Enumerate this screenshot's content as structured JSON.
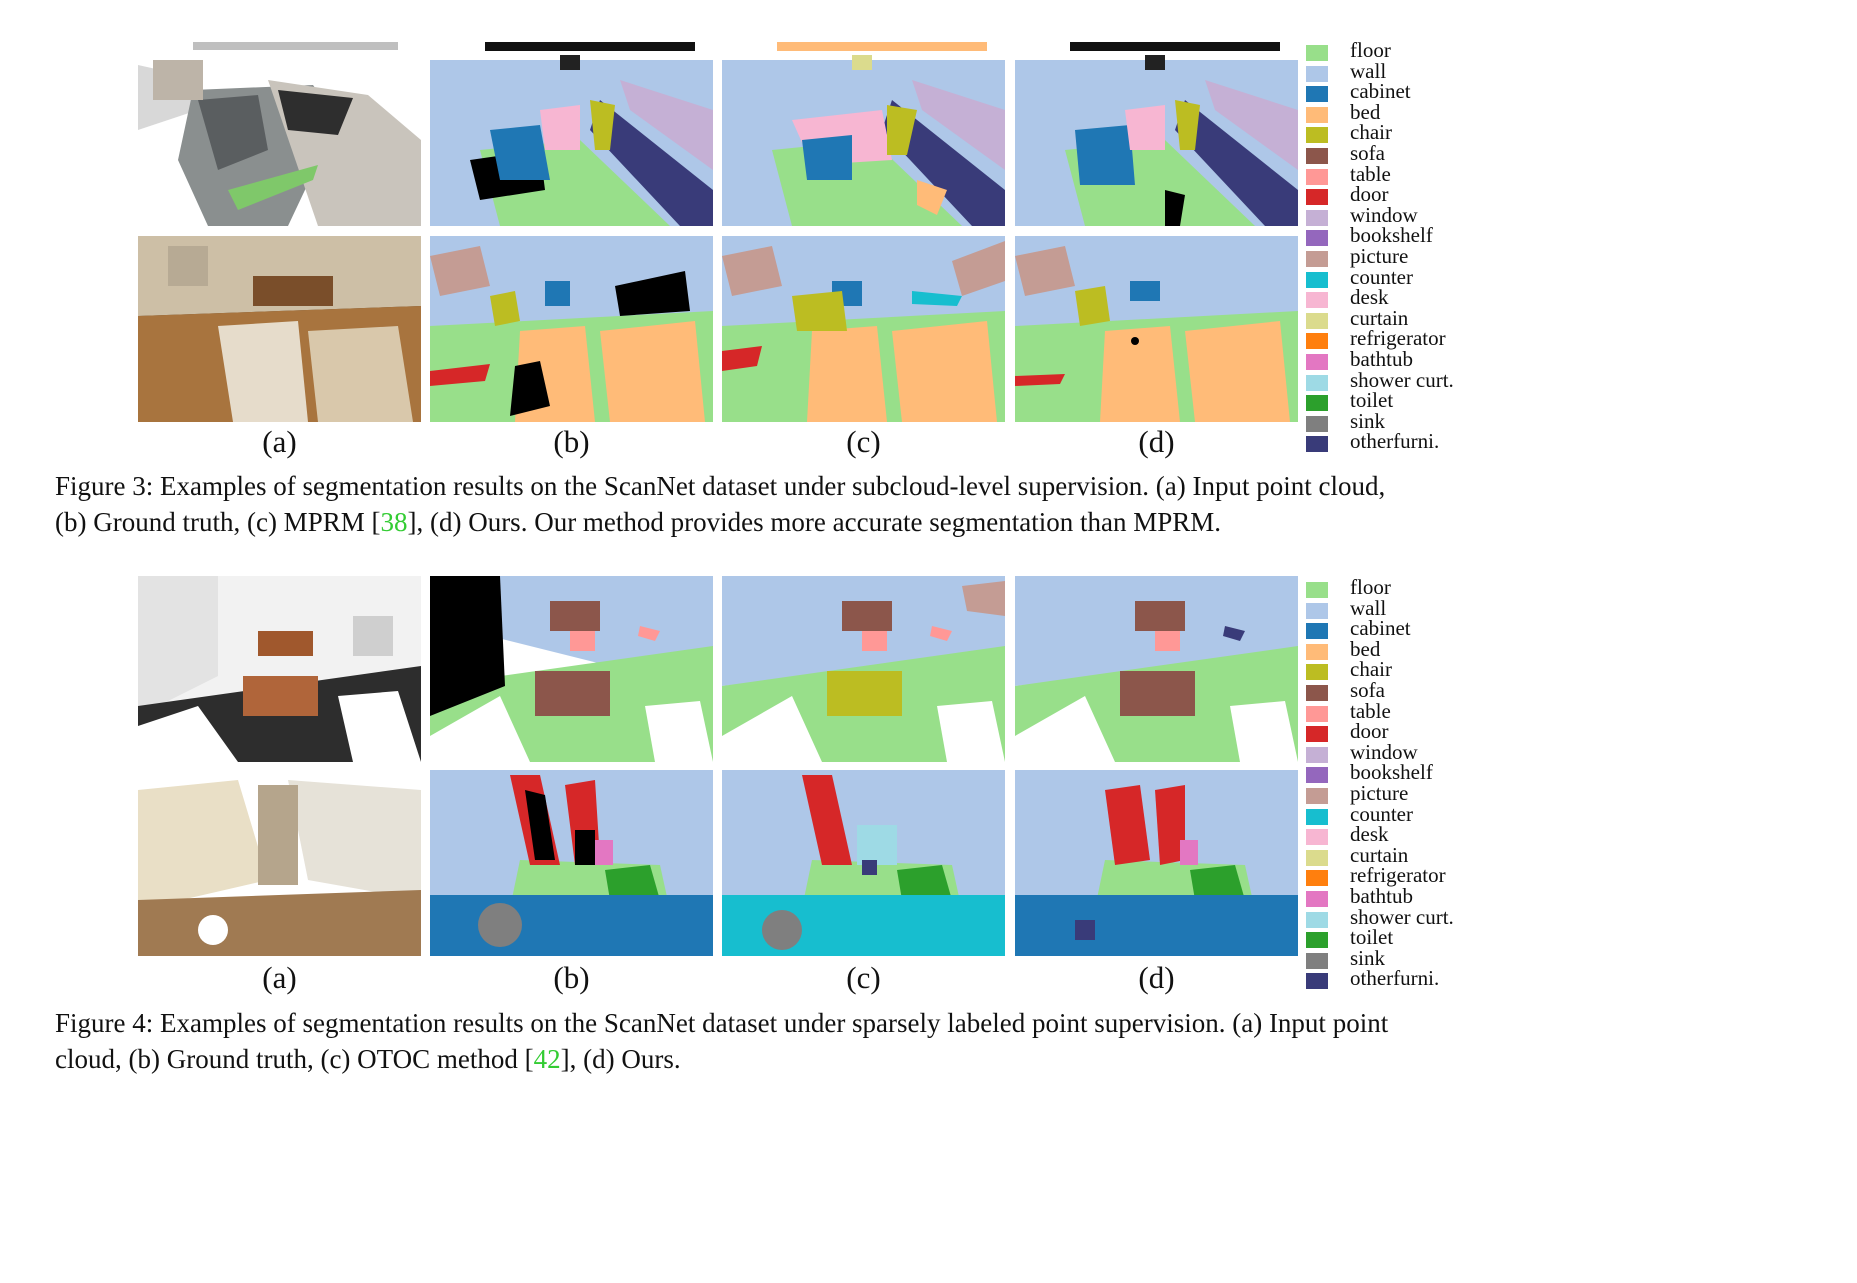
{
  "legend_classes": [
    {
      "label": "floor",
      "color": "#98df8a"
    },
    {
      "label": "wall",
      "color": "#aec7e8"
    },
    {
      "label": "cabinet",
      "color": "#1f77b4"
    },
    {
      "label": "bed",
      "color": "#ffbb78"
    },
    {
      "label": "chair",
      "color": "#bcbd22"
    },
    {
      "label": "sofa",
      "color": "#8c564b"
    },
    {
      "label": "table",
      "color": "#ff9896"
    },
    {
      "label": "door",
      "color": "#d62728"
    },
    {
      "label": "window",
      "color": "#c5b0d5"
    },
    {
      "label": "bookshelf",
      "color": "#9467bd"
    },
    {
      "label": "picture",
      "color": "#c49c94"
    },
    {
      "label": "counter",
      "color": "#17becf"
    },
    {
      "label": "desk",
      "color": "#f7b6d2"
    },
    {
      "label": "curtain",
      "color": "#dbdb8d"
    },
    {
      "label": "refrigerator",
      "color": "#ff7f0e"
    },
    {
      "label": "bathtub",
      "color": "#e377c2"
    },
    {
      "label": "shower curt.",
      "color": "#9edae5"
    },
    {
      "label": "toilet",
      "color": "#2ca02c"
    },
    {
      "label": "sink",
      "color": "#7f7f7f"
    },
    {
      "label": "otherfurni.",
      "color": "#393b79"
    }
  ],
  "figure3": {
    "sublabels": [
      "(a)",
      "(b)",
      "(c)",
      "(d)"
    ],
    "caption_part1": "Figure 3: Examples of segmentation results on the ScanNet dataset under subcloud-level supervision. (a) Input point cloud,",
    "caption_part2": "(b) Ground truth, (c) MPRM [",
    "caption_ref": "38",
    "caption_part3": "], (d) Ours. Our method provides more accurate segmentation than MPRM."
  },
  "figure4": {
    "sublabels": [
      "(a)",
      "(b)",
      "(c)",
      "(d)"
    ],
    "caption_part1": "Figure 4: Examples of segmentation results on the ScanNet dataset under sparsely labeled point supervision. (a) Input point",
    "caption_part2": "cloud, (b) Ground truth, (c) OTOC method [",
    "caption_ref": "42",
    "caption_part3": "], (d) Ours."
  }
}
